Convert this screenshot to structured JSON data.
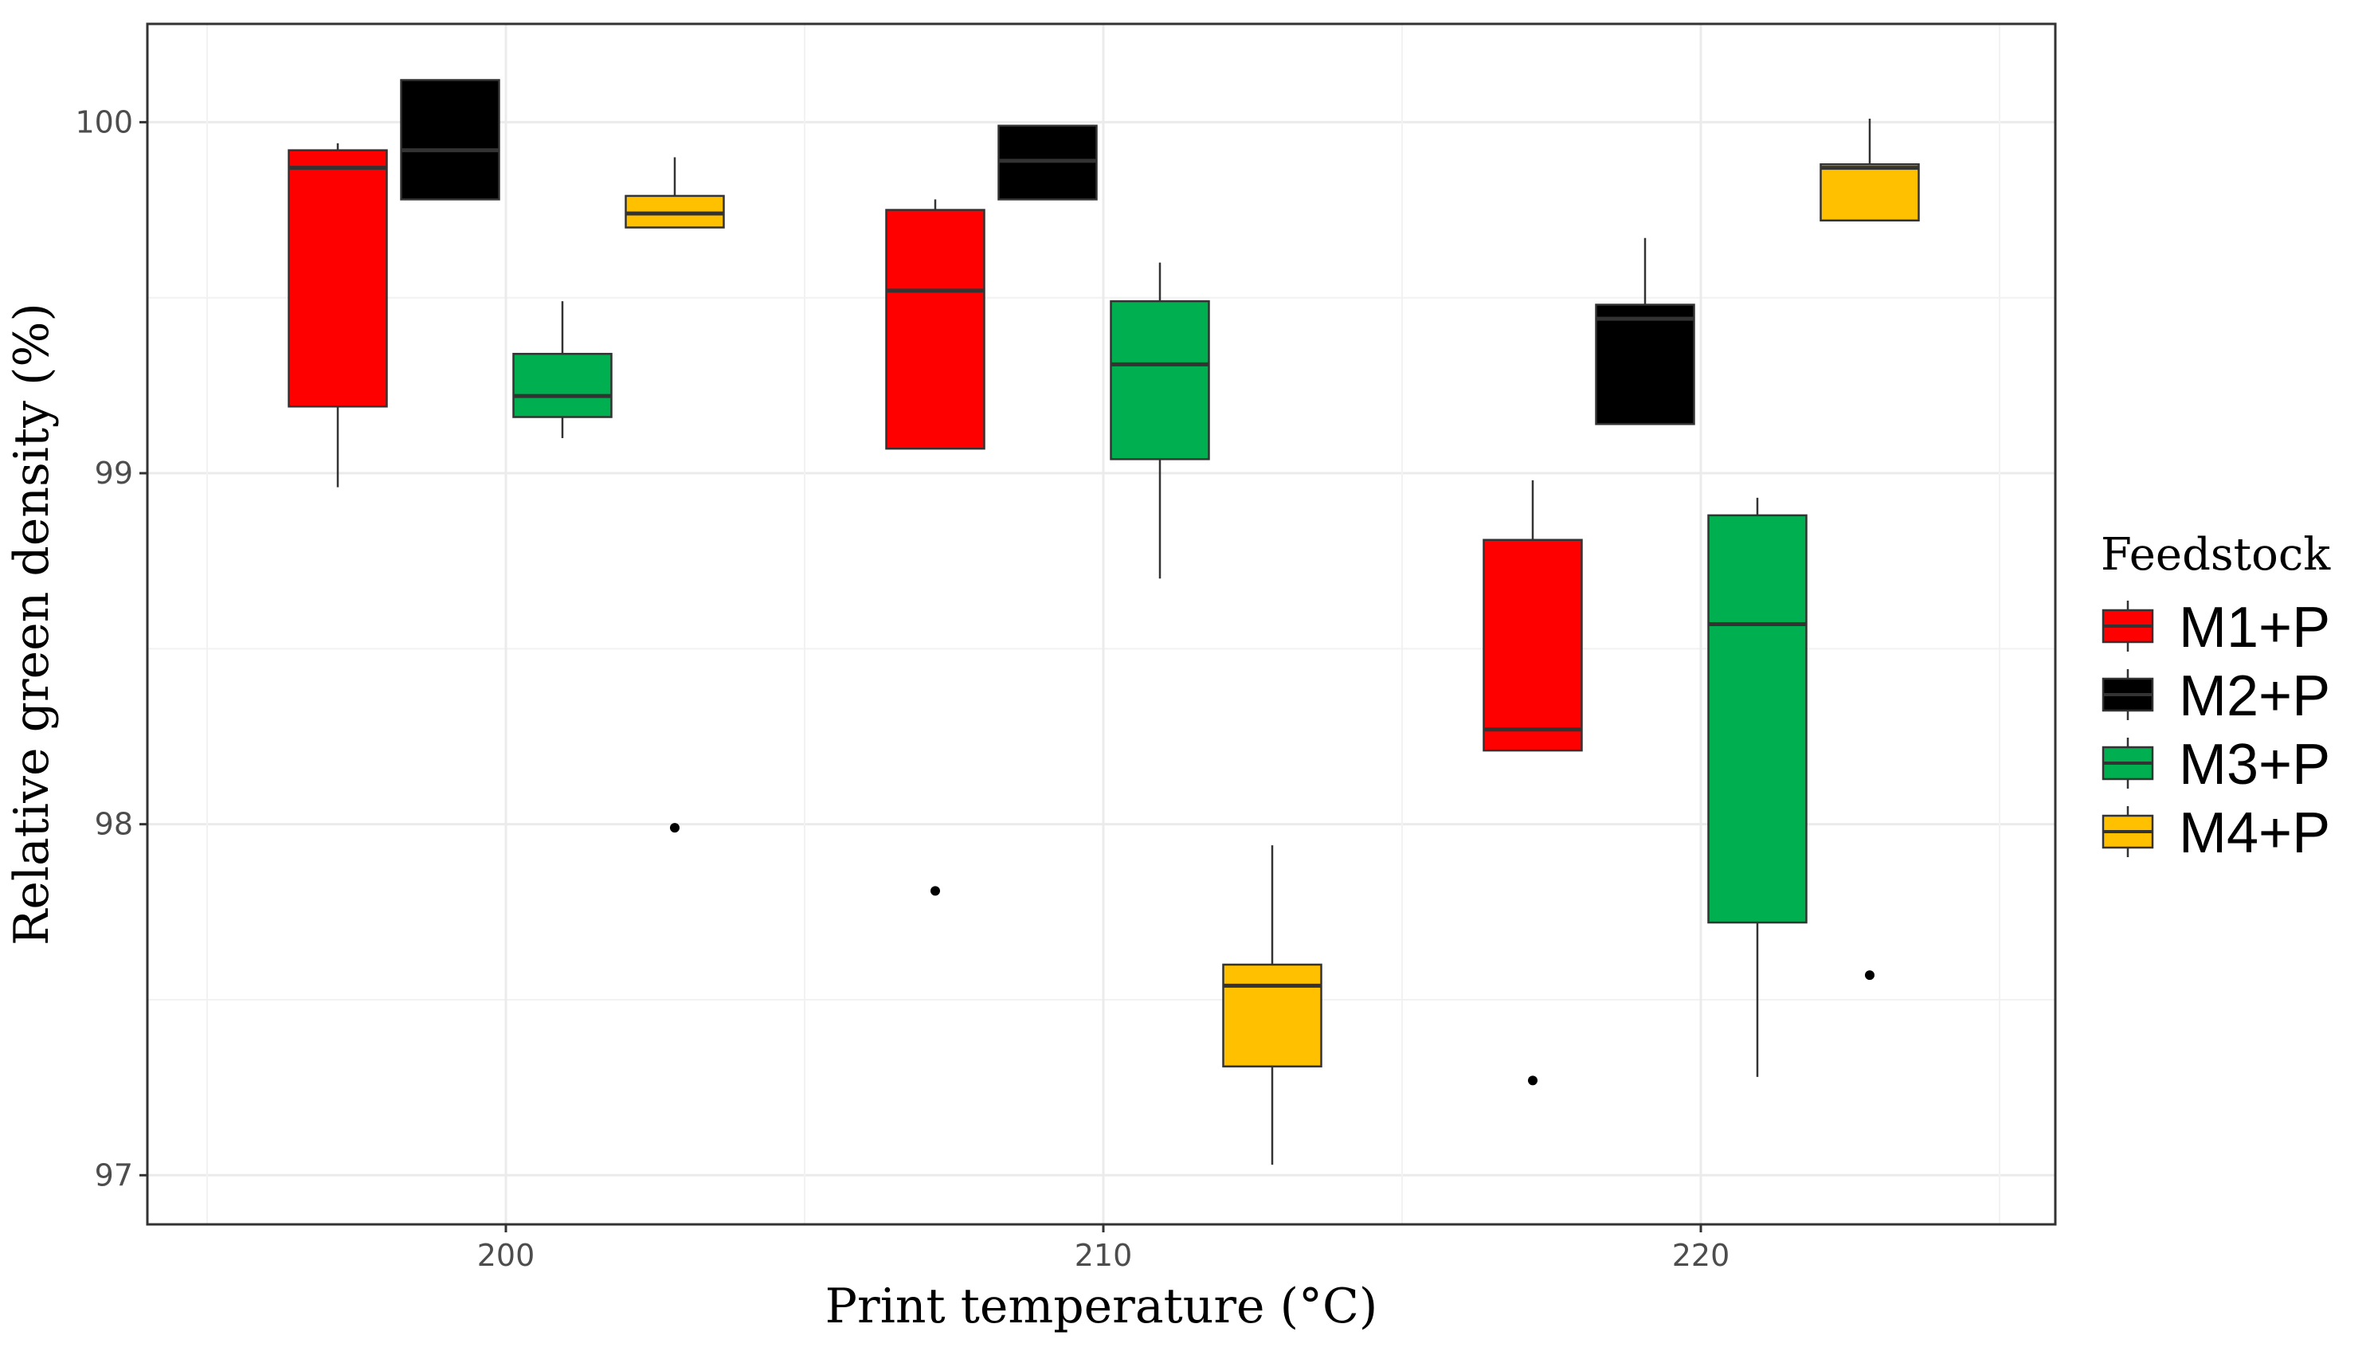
{
  "chart_data": {
    "type": "box",
    "xlabel": "Print temperature (°C)",
    "ylabel": "Relative green density (%)",
    "ylim": [
      96.86,
      100.28
    ],
    "y_ticks": [
      "97",
      "98",
      "99",
      "100"
    ],
    "y_tick_values": [
      97,
      98,
      99,
      100
    ],
    "categories": [
      "200",
      "210",
      "220"
    ],
    "grid": true,
    "legend": {
      "title": "Feedstock",
      "position": "right",
      "entries": [
        "M1+P",
        "M2+P",
        "M3+P",
        "M4+P"
      ]
    },
    "series": [
      {
        "name": "M1+P",
        "color": "#ff0000",
        "boxes": [
          {
            "category": "200",
            "whisker_low": 98.96,
            "q1": 99.19,
            "median": 99.87,
            "q3": 99.92,
            "whisker_high": 99.94,
            "outliers": []
          },
          {
            "category": "210",
            "whisker_low": 99.07,
            "q1": 99.07,
            "median": 99.52,
            "q3": 99.75,
            "whisker_high": 99.78,
            "outliers": [
              97.81
            ]
          },
          {
            "category": "220",
            "whisker_low": 98.21,
            "q1": 98.21,
            "median": 98.27,
            "q3": 98.81,
            "whisker_high": 98.98,
            "outliers": [
              97.27
            ]
          }
        ]
      },
      {
        "name": "M2+P",
        "color": "#000000",
        "boxes": [
          {
            "category": "200",
            "whisker_low": 99.78,
            "q1": 99.78,
            "median": 99.92,
            "q3": 100.12,
            "whisker_high": 100.12,
            "outliers": []
          },
          {
            "category": "210",
            "whisker_low": 99.78,
            "q1": 99.78,
            "median": 99.89,
            "q3": 99.99,
            "whisker_high": 99.99,
            "outliers": []
          },
          {
            "category": "220",
            "whisker_low": 99.14,
            "q1": 99.14,
            "median": 99.44,
            "q3": 99.48,
            "whisker_high": 99.67,
            "outliers": []
          }
        ]
      },
      {
        "name": "M3+P",
        "color": "#00b050",
        "boxes": [
          {
            "category": "200",
            "whisker_low": 99.1,
            "q1": 99.16,
            "median": 99.22,
            "q3": 99.34,
            "whisker_high": 99.49,
            "outliers": []
          },
          {
            "category": "210",
            "whisker_low": 98.7,
            "q1": 99.04,
            "median": 99.31,
            "q3": 99.49,
            "whisker_high": 99.6,
            "outliers": []
          },
          {
            "category": "220",
            "whisker_low": 97.28,
            "q1": 97.72,
            "median": 98.57,
            "q3": 98.88,
            "whisker_high": 98.93,
            "outliers": []
          }
        ]
      },
      {
        "name": "M4+P",
        "color": "#ffc000",
        "boxes": [
          {
            "category": "200",
            "whisker_low": 99.7,
            "q1": 99.7,
            "median": 99.74,
            "q3": 99.79,
            "whisker_high": 99.9,
            "outliers": [
              97.99
            ]
          },
          {
            "category": "210",
            "whisker_low": 97.03,
            "q1": 97.31,
            "median": 97.54,
            "q3": 97.6,
            "whisker_high": 97.94,
            "outliers": []
          },
          {
            "category": "220",
            "whisker_low": 99.72,
            "q1": 99.72,
            "median": 99.87,
            "q3": 99.88,
            "whisker_high": 100.01,
            "outliers": [
              97.57
            ]
          }
        ]
      }
    ]
  }
}
